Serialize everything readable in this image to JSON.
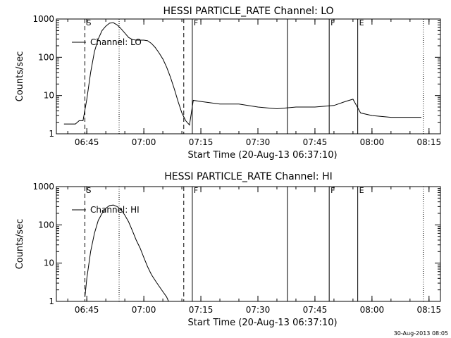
{
  "chart_data": [
    {
      "type": "line",
      "title": "HESSI PARTICLE_RATE Channel: LO",
      "xlabel": "Start Time (20-Aug-13 06:37:10)",
      "ylabel": "Counts/sec",
      "yscale": "log",
      "ylim": [
        1,
        1000
      ],
      "xlim": [
        "06:37",
        "08:18"
      ],
      "xtick_labels": [
        "06:45",
        "07:00",
        "07:15",
        "07:30",
        "07:45",
        "08:00",
        "08:15"
      ],
      "ytick_labels": [
        "1",
        "10",
        "100",
        "1000"
      ],
      "legend": {
        "label": "Channel: LO",
        "position": "top-left"
      },
      "event_markers": [
        {
          "time": "06:44:30",
          "label": "S",
          "style": "dashed"
        },
        {
          "time": "06:53:30",
          "label": "",
          "style": "dotted"
        },
        {
          "time": "07:10:30",
          "label": "",
          "style": "dashed"
        },
        {
          "time": "07:12:45",
          "label": "F",
          "style": "solid"
        },
        {
          "time": "07:37:45",
          "label": "",
          "style": "solid"
        },
        {
          "time": "07:48:45",
          "label": "F",
          "style": "solid"
        },
        {
          "time": "07:56:15",
          "label": "E",
          "style": "solid"
        },
        {
          "time": "08:13:30",
          "label": "",
          "style": "dotted"
        }
      ],
      "series": [
        {
          "x": [
            "06:39",
            "06:42",
            "06:43",
            "06:44",
            "06:45",
            "06:46",
            "06:47",
            "06:48",
            "06:49",
            "06:50",
            "06:51",
            "06:52",
            "06:53",
            "06:54",
            "06:55",
            "06:56",
            "06:57",
            "06:58",
            "06:59",
            "07:00",
            "07:01",
            "07:02",
            "07:03",
            "07:04",
            "07:05",
            "07:06",
            "07:07",
            "07:08",
            "07:09",
            "07:10",
            "07:11",
            "07:12",
            "07:13",
            "07:15",
            "07:20",
            "07:25",
            "07:30",
            "07:35",
            "07:40",
            "07:45",
            "07:50",
            "07:53",
            "07:55",
            "07:57",
            "08:00",
            "08:05",
            "08:10",
            "08:13"
          ],
          "values": [
            1.8,
            1.8,
            2.2,
            2.2,
            8,
            40,
            140,
            300,
            500,
            650,
            780,
            800,
            700,
            560,
            430,
            330,
            290,
            280,
            280,
            280,
            270,
            230,
            180,
            130,
            90,
            55,
            30,
            15,
            7,
            3.5,
            2.2,
            1.7,
            7.5,
            7,
            6,
            6,
            5,
            4.5,
            5,
            5,
            5.5,
            7,
            8,
            3.5,
            3,
            2.7,
            2.7,
            2.7
          ]
        }
      ]
    },
    {
      "type": "line",
      "title": "HESSI PARTICLE_RATE Channel: HI",
      "xlabel": "Start Time (20-Aug-13 06:37:10)",
      "ylabel": "Counts/sec",
      "yscale": "log",
      "ylim": [
        1,
        1000
      ],
      "xlim": [
        "06:37",
        "08:18"
      ],
      "xtick_labels": [
        "06:45",
        "07:00",
        "07:15",
        "07:30",
        "07:45",
        "08:00",
        "08:15"
      ],
      "ytick_labels": [
        "1",
        "10",
        "100",
        "1000"
      ],
      "legend": {
        "label": "Channel: HI",
        "position": "top-left"
      },
      "event_markers": [
        {
          "time": "06:44:30",
          "label": "S",
          "style": "dashed"
        },
        {
          "time": "06:53:30",
          "label": "",
          "style": "dotted"
        },
        {
          "time": "07:10:30",
          "label": "",
          "style": "dashed"
        },
        {
          "time": "07:12:45",
          "label": "F",
          "style": "solid"
        },
        {
          "time": "07:37:45",
          "label": "",
          "style": "solid"
        },
        {
          "time": "07:48:45",
          "label": "F",
          "style": "solid"
        },
        {
          "time": "07:56:15",
          "label": "E",
          "style": "solid"
        },
        {
          "time": "08:13:30",
          "label": "",
          "style": "dotted"
        }
      ],
      "series": [
        {
          "x": [
            "06:44:30",
            "06:45",
            "06:46",
            "06:47",
            "06:48",
            "06:49",
            "06:50",
            "06:51",
            "06:52",
            "06:53",
            "06:54",
            "06:55",
            "06:56",
            "06:57",
            "06:58",
            "06:59",
            "07:00",
            "07:01",
            "07:02",
            "07:03",
            "07:04",
            "07:05",
            "07:06",
            "07:06:30"
          ],
          "values": [
            1.3,
            4,
            20,
            60,
            130,
            200,
            270,
            320,
            330,
            300,
            250,
            180,
            120,
            70,
            40,
            25,
            14,
            8,
            5,
            3.5,
            2.5,
            1.8,
            1.3,
            1.0
          ]
        }
      ]
    }
  ],
  "footer_stamp": "30-Aug-2013 08:05"
}
